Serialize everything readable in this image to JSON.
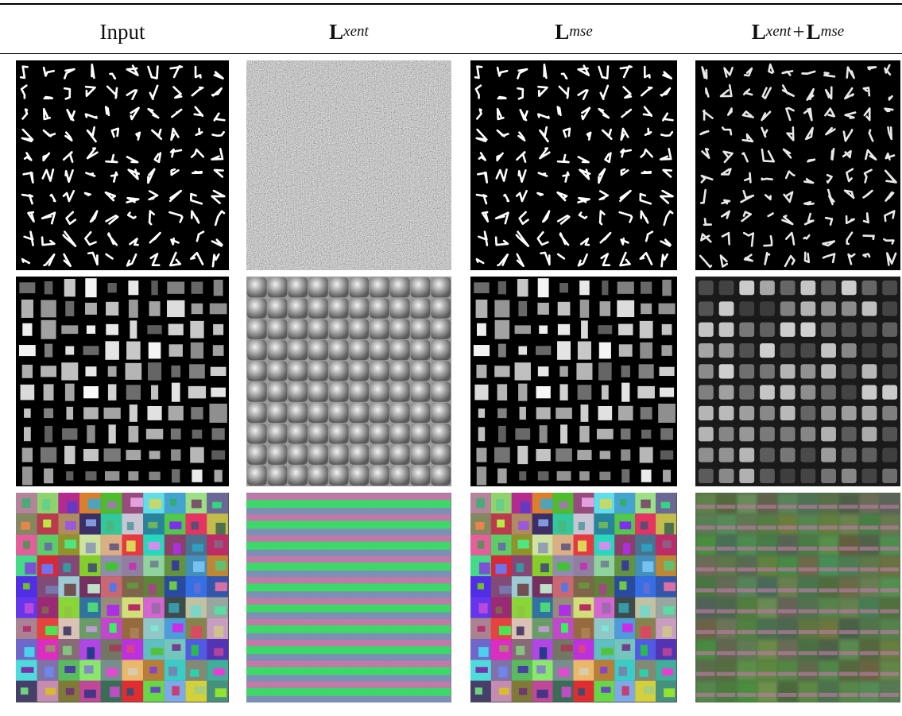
{
  "columns": [
    {
      "text": "Input"
    },
    {
      "terms": [
        {
          "symbol": "L",
          "subscript": "xent"
        }
      ]
    },
    {
      "terms": [
        {
          "symbol": "L",
          "subscript": "mse"
        }
      ]
    },
    {
      "terms": [
        {
          "symbol": "L",
          "subscript": "xent"
        },
        {
          "symbol": "L",
          "subscript": "mse"
        }
      ],
      "operator": "+"
    }
  ]
}
